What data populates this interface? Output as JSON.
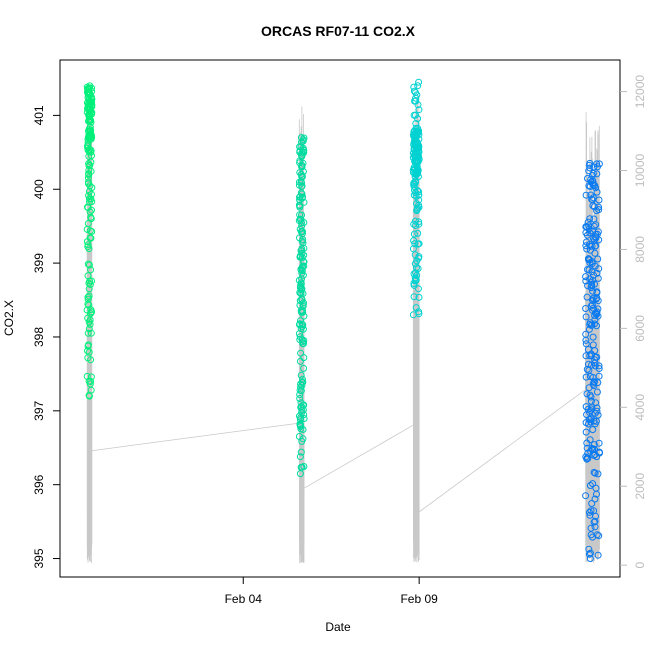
{
  "chart_data": {
    "type": "scatter",
    "title": "ORCAS RF07-11 CO2.X",
    "xlabel": "Date",
    "ylabel": "CO2.X",
    "y2label": "",
    "x_ticks": [
      {
        "label": "Feb 04",
        "value": "2016-02-04"
      },
      {
        "label": "Feb 09",
        "value": "2016-02-09"
      }
    ],
    "xlim": [
      "2016-01-29T19:00",
      "2016-02-14T17:00"
    ],
    "ylim": [
      394.75,
      401.75
    ],
    "y_ticks": [
      395,
      396,
      397,
      398,
      399,
      400,
      401
    ],
    "y2lim": [
      -300,
      12800
    ],
    "y2_ticks": [
      0,
      2000,
      4000,
      6000,
      8000,
      10000,
      12000
    ],
    "grid": false,
    "colors": {
      "frame": "#000000",
      "secondary_line": "#c8c8c8",
      "secondary_axis": "#bdbdbd"
    },
    "secondary_series": {
      "style": "line",
      "color": "#c8c8c8",
      "segments": [
        {
          "x": [
            "2016-01-30T13:30",
            "2016-01-30T16:45"
          ],
          "y_min": 50,
          "y_max": 12100,
          "end_y": 2900
        },
        {
          "x": [
            "2016-02-05T14:15",
            "2016-02-05T17:30"
          ],
          "y_min": 50,
          "y_max": 11650,
          "start_y": 3600,
          "end_y": 1950
        },
        {
          "x": [
            "2016-02-08T20:00",
            "2016-02-09T00:00"
          ],
          "y_min": 50,
          "y_max": 12050,
          "start_y": 3550,
          "end_y": 1350
        },
        {
          "x": [
            "2016-02-13T17:30",
            "2016-02-14T03:00"
          ],
          "y_min": 50,
          "y_max": 11550,
          "start_y": 4450
        }
      ]
    },
    "series": [
      {
        "color": "#00f07a",
        "x_range": [
          "2016-01-30T13:30",
          "2016-01-30T16:45"
        ],
        "y_min": 397.2,
        "y_max": 401.4
      },
      {
        "color": "#00dca0",
        "x_range": [
          "2016-02-05T14:15",
          "2016-02-05T17:30"
        ],
        "y_min": 396.15,
        "y_max": 400.7
      },
      {
        "color": "#00d2d2",
        "x_range": [
          "2016-02-08T20:00",
          "2016-02-09T00:00"
        ],
        "y_min": 398.3,
        "y_max": 401.45
      },
      {
        "color": "#0a7af0",
        "x_range": [
          "2016-02-13T17:30",
          "2016-02-14T03:00"
        ],
        "y_min": 395.0,
        "y_max": 400.35
      }
    ]
  }
}
